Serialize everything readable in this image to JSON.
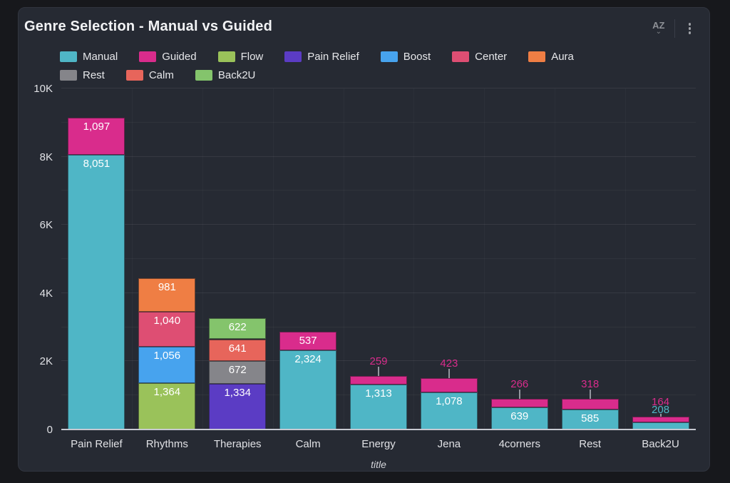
{
  "panel": {
    "title": "Genre Selection - Manual vs Guided",
    "header": {
      "sort_icon_label": "AZ",
      "sort_caret": "⌄"
    }
  },
  "legend": {
    "wrap_after": 7,
    "items": [
      {
        "label": "Manual",
        "color": "#4FB6C6"
      },
      {
        "label": "Guided",
        "color": "#D92C8C"
      },
      {
        "label": "Flow",
        "color": "#9AC25A"
      },
      {
        "label": "Pain Relief",
        "color": "#5B3CC4"
      },
      {
        "label": "Boost",
        "color": "#47A3EE"
      },
      {
        "label": "Center",
        "color": "#DE4E73"
      },
      {
        "label": "Aura",
        "color": "#EF7E44"
      },
      {
        "label": "Rest",
        "color": "#85858A"
      },
      {
        "label": "Calm",
        "color": "#E7655B"
      },
      {
        "label": "Back2U",
        "color": "#84C46C"
      }
    ]
  },
  "chart_data": {
    "type": "bar",
    "stacked": true,
    "title": "Genre Selection - Manual vs Guided",
    "xlabel": "title",
    "ylabel": "",
    "ylim": [
      0,
      10000
    ],
    "grid_step": 1000,
    "legend_position": "top",
    "y_ticks": [
      {
        "value": 0,
        "label": "0"
      },
      {
        "value": 2000,
        "label": "2K"
      },
      {
        "value": 4000,
        "label": "4K"
      },
      {
        "value": 6000,
        "label": "6K"
      },
      {
        "value": 8000,
        "label": "8K"
      },
      {
        "value": 10000,
        "label": "10K"
      }
    ],
    "categories": [
      "Pain Relief",
      "Rhythms",
      "Therapies",
      "Calm",
      "Energy",
      "Jena",
      "4corners",
      "Rest",
      "Back2U"
    ],
    "series": [
      {
        "name": "Manual",
        "color": "#4FB6C6",
        "values": [
          8051,
          null,
          null,
          2324,
          1313,
          1078,
          639,
          585,
          208
        ]
      },
      {
        "name": "Guided",
        "color": "#D92C8C",
        "values": [
          1097,
          null,
          null,
          537,
          259,
          423,
          266,
          318,
          164
        ]
      },
      {
        "name": "Flow",
        "color": "#9AC25A",
        "values": [
          null,
          1364,
          null,
          null,
          null,
          null,
          null,
          null,
          null
        ]
      },
      {
        "name": "Boost",
        "color": "#47A3EE",
        "values": [
          null,
          1056,
          null,
          null,
          null,
          null,
          null,
          null,
          null
        ]
      },
      {
        "name": "Center",
        "color": "#DE4E73",
        "values": [
          null,
          1040,
          null,
          null,
          null,
          null,
          null,
          null,
          null
        ]
      },
      {
        "name": "Aura",
        "color": "#EF7E44",
        "values": [
          null,
          981,
          null,
          null,
          null,
          null,
          null,
          null,
          null
        ]
      },
      {
        "name": "Pain Relief",
        "color": "#5B3CC4",
        "values": [
          null,
          null,
          1334,
          null,
          null,
          null,
          null,
          null,
          null
        ]
      },
      {
        "name": "Rest",
        "color": "#85858A",
        "values": [
          null,
          null,
          672,
          null,
          null,
          null,
          null,
          null,
          null
        ]
      },
      {
        "name": "Calm",
        "color": "#E7655B",
        "values": [
          null,
          null,
          641,
          null,
          null,
          null,
          null,
          null,
          null
        ]
      },
      {
        "name": "Back2U",
        "color": "#84C46C",
        "values": [
          null,
          null,
          622,
          null,
          null,
          null,
          null,
          null,
          null
        ]
      }
    ]
  }
}
